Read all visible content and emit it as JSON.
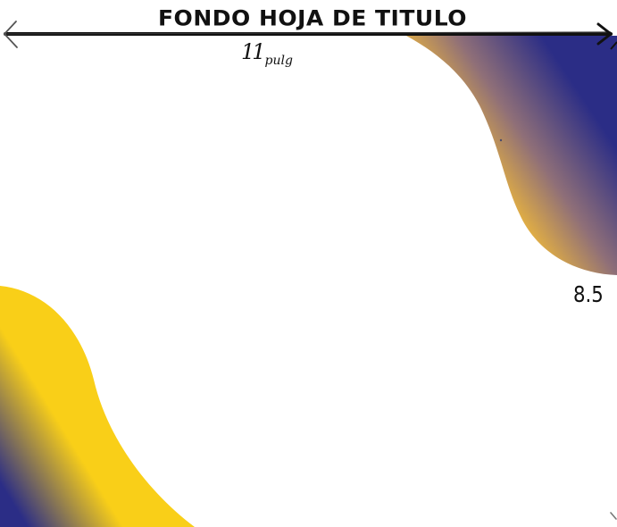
{
  "title": "FONDO HOJA DE TITULO",
  "dimensions": {
    "width_value": "11",
    "width_unit": "pulg",
    "height_value": "8.5"
  },
  "colors": {
    "navy": "#2b2d86",
    "gold": "#f1ba3a",
    "yellow": "#f9cf18",
    "ink": "#111111"
  }
}
